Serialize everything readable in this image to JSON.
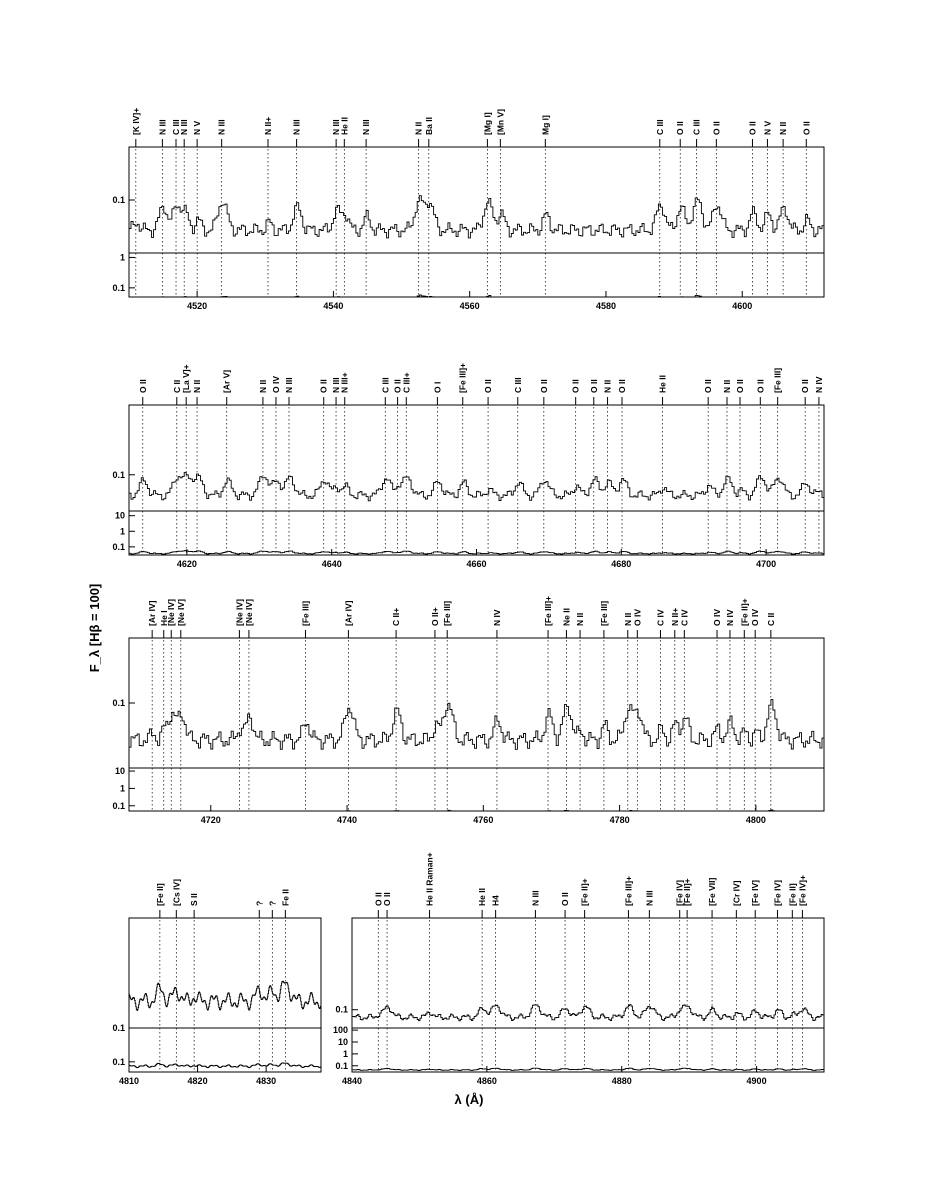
{
  "chart_data": {
    "type": "line",
    "ylabel": "F_λ [Hβ = 100]",
    "xlabel": "λ (Å)",
    "panels": [
      {
        "xlim": [
          4510,
          4612
        ],
        "xticks": [
          4520,
          4540,
          4560,
          4580,
          4600
        ],
        "upper": {
          "ylim": [
            0.05,
            0.2
          ],
          "yticks": [
            0.1
          ]
        },
        "lower": {
          "ylim": [
            0.05,
            1.4
          ],
          "yticks": [
            0.1,
            1
          ]
        },
        "lines": [
          {
            "x": 4511.0,
            "label": "[K IV]+"
          },
          {
            "x": 4514.9,
            "label": "N III"
          },
          {
            "x": 4516.9,
            "label": "C III"
          },
          {
            "x": 4518.1,
            "label": "N III"
          },
          {
            "x": 4520.0,
            "label": "N V"
          },
          {
            "x": 4523.6,
            "label": "N III"
          },
          {
            "x": 4530.4,
            "label": "N II+"
          },
          {
            "x": 4534.6,
            "label": "N III"
          },
          {
            "x": 4540.4,
            "label": "N III"
          },
          {
            "x": 4541.6,
            "label": "He II"
          },
          {
            "x": 4544.8,
            "label": "N III"
          },
          {
            "x": 4552.5,
            "label": "N II"
          },
          {
            "x": 4554.0,
            "label": "Ba II"
          },
          {
            "x": 4562.6,
            "label": "[Mg I]"
          },
          {
            "x": 4564.5,
            "label": "[Mn V]"
          },
          {
            "x": 4571.1,
            "label": "Mg I]"
          },
          {
            "x": 4587.9,
            "label": "C III"
          },
          {
            "x": 4590.9,
            "label": "O II"
          },
          {
            "x": 4593.3,
            "label": "C III"
          },
          {
            "x": 4596.2,
            "label": "O II"
          },
          {
            "x": 4601.5,
            "label": "O II"
          },
          {
            "x": 4603.7,
            "label": "N V"
          },
          {
            "x": 4606.0,
            "label": "N II"
          },
          {
            "x": 4609.4,
            "label": "O II"
          }
        ]
      },
      {
        "xlim": [
          4612,
          4708
        ],
        "xticks": [
          4620,
          4640,
          4660,
          4680,
          4700
        ],
        "upper": {
          "ylim": [
            0.05,
            0.38
          ],
          "yticks": [
            0.1
          ]
        },
        "lower": {
          "ylim": [
            0.03,
            20
          ],
          "yticks": [
            0.1,
            1,
            10
          ]
        },
        "lines": [
          {
            "x": 4613.9,
            "label": "O II"
          },
          {
            "x": 4618.6,
            "label": "C II"
          },
          {
            "x": 4619.9,
            "label": "[La V]+"
          },
          {
            "x": 4621.4,
            "label": "N II"
          },
          {
            "x": 4625.5,
            "label": "[Ar V]"
          },
          {
            "x": 4630.5,
            "label": "N II"
          },
          {
            "x": 4632.3,
            "label": "O IV"
          },
          {
            "x": 4634.1,
            "label": "N III"
          },
          {
            "x": 4638.9,
            "label": "O II"
          },
          {
            "x": 4640.6,
            "label": "N III"
          },
          {
            "x": 4641.8,
            "label": "N III+"
          },
          {
            "x": 4647.4,
            "label": "C III"
          },
          {
            "x": 4649.1,
            "label": "O II"
          },
          {
            "x": 4650.3,
            "label": "C III+"
          },
          {
            "x": 4654.6,
            "label": "O I"
          },
          {
            "x": 4658.1,
            "label": "[Fe III]+"
          },
          {
            "x": 4661.6,
            "label": "O II"
          },
          {
            "x": 4665.7,
            "label": "C III"
          },
          {
            "x": 4669.3,
            "label": "O II"
          },
          {
            "x": 4673.7,
            "label": "O II"
          },
          {
            "x": 4676.2,
            "label": "O II"
          },
          {
            "x": 4678.1,
            "label": "N II"
          },
          {
            "x": 4680.1,
            "label": "O II"
          },
          {
            "x": 4685.7,
            "label": "He II"
          },
          {
            "x": 4692.0,
            "label": "O II"
          },
          {
            "x": 4694.6,
            "label": "N II"
          },
          {
            "x": 4696.4,
            "label": "O II"
          },
          {
            "x": 4699.2,
            "label": "O II"
          },
          {
            "x": 4701.6,
            "label": "[Fe III]"
          },
          {
            "x": 4705.4,
            "label": "O II"
          },
          {
            "x": 4707.3,
            "label": "N IV"
          }
        ]
      },
      {
        "xlim": [
          4708,
          4810
        ],
        "xticks": [
          4720,
          4740,
          4760,
          4780,
          4800
        ],
        "upper": {
          "ylim": [
            0.05,
            0.2
          ],
          "yticks": [
            0.1
          ]
        },
        "lower": {
          "ylim": [
            0.05,
            15
          ],
          "yticks": [
            0.1,
            1,
            10
          ]
        },
        "lines": [
          {
            "x": 4711.4,
            "label": "[Ar IV]"
          },
          {
            "x": 4713.1,
            "label": "He I"
          },
          {
            "x": 4714.2,
            "label": "[Ne IV]"
          },
          {
            "x": 4715.6,
            "label": "[Ne IV]"
          },
          {
            "x": 4724.2,
            "label": "[Ne IV]"
          },
          {
            "x": 4725.6,
            "label": "[Ne IV]"
          },
          {
            "x": 4733.9,
            "label": "[Fe III]"
          },
          {
            "x": 4740.2,
            "label": "[Ar IV]"
          },
          {
            "x": 4747.2,
            "label": "C II+"
          },
          {
            "x": 4752.9,
            "label": "O II+"
          },
          {
            "x": 4754.7,
            "label": "[Fe III]"
          },
          {
            "x": 4762.0,
            "label": "N IV"
          },
          {
            "x": 4769.5,
            "label": "[Fe III]+"
          },
          {
            "x": 4772.2,
            "label": "Ne II"
          },
          {
            "x": 4774.2,
            "label": "N II"
          },
          {
            "x": 4777.7,
            "label": "[Fe III]"
          },
          {
            "x": 4781.2,
            "label": "N II"
          },
          {
            "x": 4782.6,
            "label": "O IV"
          },
          {
            "x": 4786.0,
            "label": "C IV"
          },
          {
            "x": 4788.1,
            "label": "N II+"
          },
          {
            "x": 4789.5,
            "label": "C IV"
          },
          {
            "x": 4794.3,
            "label": "O IV"
          },
          {
            "x": 4796.2,
            "label": "N IV"
          },
          {
            "x": 4798.3,
            "label": "[Fe II]+"
          },
          {
            "x": 4799.9,
            "label": "O IV"
          },
          {
            "x": 4802.2,
            "label": "C II"
          }
        ]
      },
      {
        "xlim": [
          4810,
          4838
        ],
        "xticks": [
          4810,
          4820,
          4830
        ],
        "upper": {
          "ylim": [
            0.1,
            0.34
          ],
          "yticks": [
            0.1
          ]
        },
        "lower": {
          "ylim": [
            0.05,
            1
          ],
          "yticks": [
            0.1
          ]
        },
        "lines": [
          {
            "x": 4814.5,
            "label": "[Fe II]"
          },
          {
            "x": 4816.9,
            "label": "[Cs IV]"
          },
          {
            "x": 4819.5,
            "label": "S II"
          },
          {
            "x": 4829.0,
            "label": "?"
          },
          {
            "x": 4830.9,
            "label": "?"
          },
          {
            "x": 4832.8,
            "label": "Fe II"
          }
        ]
      },
      {
        "xlim": [
          4840,
          4910
        ],
        "xticks": [
          4840,
          4860,
          4880,
          4900
        ],
        "upper": {
          "ylim": [
            0.06,
            1.3
          ],
          "yticks": [
            0.1
          ]
        },
        "lower": {
          "ylim": [
            0.03,
            150
          ],
          "yticks": [
            0.1,
            1,
            10,
            100
          ]
        },
        "lines": [
          {
            "x": 4843.9,
            "label": "O II"
          },
          {
            "x": 4845.2,
            "label": "O II"
          },
          {
            "x": 4851.5,
            "label": "He II Raman+"
          },
          {
            "x": 4859.3,
            "label": "He II"
          },
          {
            "x": 4861.3,
            "label": "H4"
          },
          {
            "x": 4867.2,
            "label": "N III"
          },
          {
            "x": 4871.6,
            "label": "O II"
          },
          {
            "x": 4874.5,
            "label": "[Fe II]+"
          },
          {
            "x": 4881.0,
            "label": "[Fe III]+"
          },
          {
            "x": 4884.1,
            "label": "N III"
          },
          {
            "x": 4888.6,
            "label": "[Fe IV]"
          },
          {
            "x": 4889.7,
            "label": "[Fe II]+"
          },
          {
            "x": 4893.4,
            "label": "[Fe VII]"
          },
          {
            "x": 4897.0,
            "label": "[Cr IV]"
          },
          {
            "x": 4899.8,
            "label": "[Fe IV]"
          },
          {
            "x": 4903.1,
            "label": "[Fe IV]"
          },
          {
            "x": 4905.3,
            "label": "[Fe II]"
          },
          {
            "x": 4906.8,
            "label": "[Fe IV]+"
          }
        ]
      }
    ]
  }
}
